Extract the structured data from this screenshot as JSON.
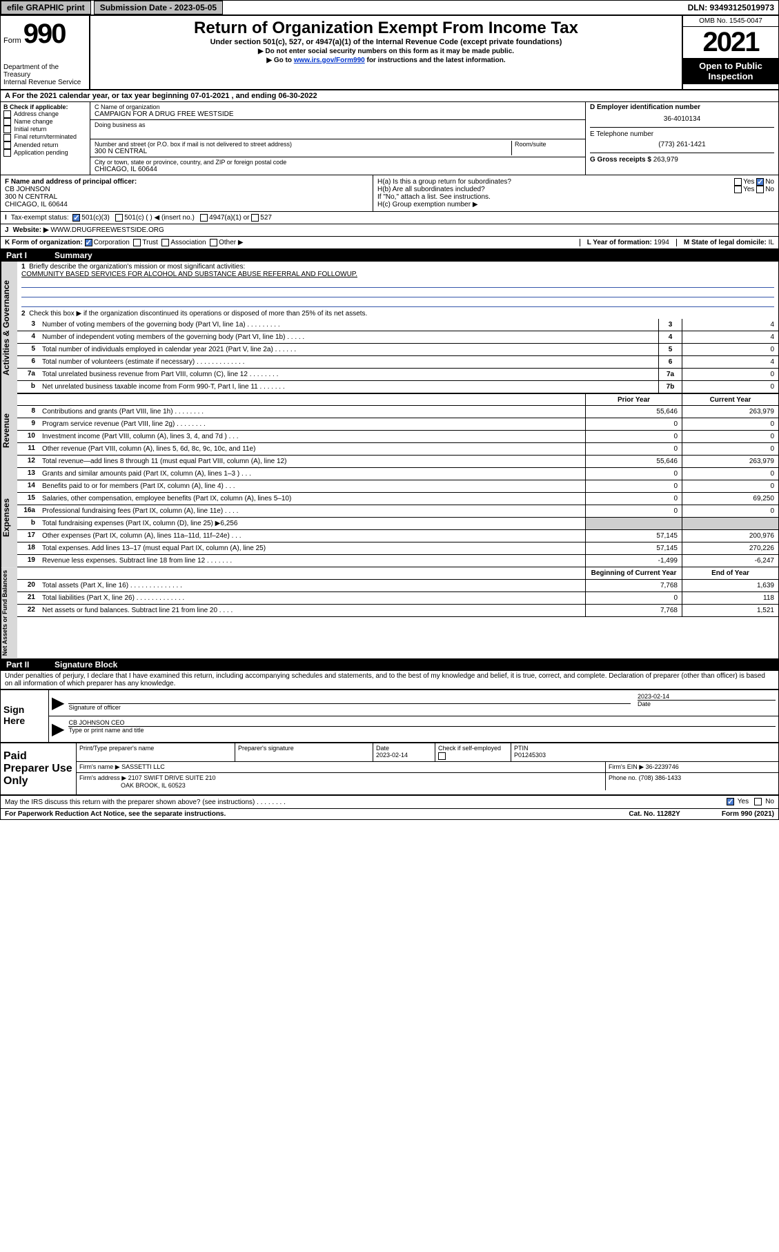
{
  "topbar": {
    "efile": "efile GRAPHIC print",
    "sub_label": "Submission Date - 2023-05-05",
    "dln": "DLN: 93493125019973"
  },
  "header": {
    "form_word": "Form",
    "form_num": "990",
    "dept": "Department of the Treasury",
    "irs": "Internal Revenue Service",
    "title": "Return of Organization Exempt From Income Tax",
    "sub1": "Under section 501(c), 527, or 4947(a)(1) of the Internal Revenue Code (except private foundations)",
    "sub2": "▶ Do not enter social security numbers on this form as it may be made public.",
    "sub3": "▶ Go to www.irs.gov/Form990 for instructions and the latest information.",
    "omb": "OMB No. 1545-0047",
    "year": "2021",
    "open": "Open to Public Inspection"
  },
  "period": "For the 2021 calendar year, or tax year beginning 07-01-2021   , and ending 06-30-2022",
  "boxB": {
    "hdr": "B Check if applicable:",
    "opts": [
      "Address change",
      "Name change",
      "Initial return",
      "Final return/terminated",
      "Amended return",
      "Application pending"
    ]
  },
  "boxC": {
    "lbl": "C Name of organization",
    "val": "CAMPAIGN FOR A DRUG FREE WESTSIDE",
    "dba_lbl": "Doing business as",
    "addr_lbl": "Number and street (or P.O. box if mail is not delivered to street address)",
    "room_lbl": "Room/suite",
    "addr": "300 N CENTRAL",
    "city_lbl": "City or town, state or province, country, and ZIP or foreign postal code",
    "city": "CHICAGO, IL  60644"
  },
  "boxD": {
    "lbl": "D Employer identification number",
    "val": "36-4010134"
  },
  "boxE": {
    "lbl": "E Telephone number",
    "val": "(773) 261-1421"
  },
  "boxG": {
    "lbl": "G Gross receipts $",
    "val": "263,979"
  },
  "boxF": {
    "lbl": "F Name and address of principal officer:",
    "name": "CB JOHNSON",
    "addr": "300 N CENTRAL",
    "city": "CHICAGO, IL  60644"
  },
  "boxH": {
    "a": "H(a)  Is this a group return for subordinates?",
    "b": "H(b)  Are all subordinates included?",
    "bnote": "If \"No,\" attach a list. See instructions.",
    "c": "H(c)  Group exemption number ▶",
    "yes": "Yes",
    "no": "No"
  },
  "taxstatus": {
    "lbl": "Tax-exempt status:",
    "o1": "501(c)(3)",
    "o2": "501(c) (   ) ◀ (insert no.)",
    "o3": "4947(a)(1) or",
    "o4": "527"
  },
  "website": {
    "lbl": "Website: ▶",
    "val": "WWW.DRUGFREEWESTSIDE.ORG"
  },
  "lineK": {
    "lbl": "K Form of organization:",
    "corp": "Corporation",
    "trust": "Trust",
    "assoc": "Association",
    "other": "Other ▶"
  },
  "lineL": {
    "lbl": "L Year of formation:",
    "val": "1994"
  },
  "lineM": {
    "lbl": "M State of legal domicile:",
    "val": "IL"
  },
  "part1": {
    "hdr": "Part I",
    "title": "Summary",
    "q1": "Briefly describe the organization's mission or most significant activities:",
    "q1val": "COMMUNITY BASED SERVICES FOR ALCOHOL AND SUBSTANCE ABUSE REFERRAL AND FOLLOWUP.",
    "q2": "Check this box ▶       if the organization discontinued its operations or disposed of more than 25% of its net assets.",
    "sideA": "Activities & Governance",
    "sideR": "Revenue",
    "sideE": "Expenses",
    "sideN": "Net Assets or Fund Balances",
    "prior": "Prior Year",
    "current": "Current Year",
    "boy": "Beginning of Current Year",
    "eoy": "End of Year"
  },
  "rows_gov": [
    {
      "n": "3",
      "t": "Number of voting members of the governing body (Part VI, line 1a)  .    .    .    .    .    .    .    .    .",
      "b": "3",
      "v": "4"
    },
    {
      "n": "4",
      "t": "Number of independent voting members of the governing body (Part VI, line 1b)  .    .    .    .    .",
      "b": "4",
      "v": "4"
    },
    {
      "n": "5",
      "t": "Total number of individuals employed in calendar year 2021 (Part V, line 2a)   .    .    .    .    .    .",
      "b": "5",
      "v": "0"
    },
    {
      "n": "6",
      "t": "Total number of volunteers (estimate if necessary)   .    .    .    .    .    .    .    .    .    .    .    .    .",
      "b": "6",
      "v": "4"
    },
    {
      "n": "7a",
      "t": "Total unrelated business revenue from Part VIII, column (C), line 12   .    .    .    .    .    .    .    .",
      "b": "7a",
      "v": "0"
    },
    {
      "n": "b",
      "t": "Net unrelated business taxable income from Form 990-T, Part I, line 11   .    .    .    .    .    .    .",
      "b": "7b",
      "v": "0"
    }
  ],
  "rows_rev": [
    {
      "n": "8",
      "t": "Contributions and grants (Part VIII, line 1h)   .    .    .    .    .    .    .    .",
      "p": "55,646",
      "c": "263,979"
    },
    {
      "n": "9",
      "t": "Program service revenue (Part VIII, line 2g)   .    .    .    .    .    .    .    .",
      "p": "0",
      "c": "0"
    },
    {
      "n": "10",
      "t": "Investment income (Part VIII, column (A), lines 3, 4, and 7d )   .    .    .",
      "p": "0",
      "c": "0"
    },
    {
      "n": "11",
      "t": "Other revenue (Part VIII, column (A), lines 5, 6d, 8c, 9c, 10c, and 11e)",
      "p": "0",
      "c": "0"
    },
    {
      "n": "12",
      "t": "Total revenue—add lines 8 through 11 (must equal Part VIII, column (A), line 12)",
      "p": "55,646",
      "c": "263,979"
    }
  ],
  "rows_exp": [
    {
      "n": "13",
      "t": "Grants and similar amounts paid (Part IX, column (A), lines 1–3 )  .    .    .",
      "p": "0",
      "c": "0"
    },
    {
      "n": "14",
      "t": "Benefits paid to or for members (Part IX, column (A), line 4)   .    .    .",
      "p": "0",
      "c": "0"
    },
    {
      "n": "15",
      "t": "Salaries, other compensation, employee benefits (Part IX, column (A), lines 5–10)",
      "p": "0",
      "c": "69,250"
    },
    {
      "n": "16a",
      "t": "Professional fundraising fees (Part IX, column (A), line 11e)   .    .    .    .",
      "p": "0",
      "c": "0"
    },
    {
      "n": "b",
      "t": "Total fundraising expenses (Part IX, column (D), line 25) ▶6,256",
      "gray": true
    },
    {
      "n": "17",
      "t": "Other expenses (Part IX, column (A), lines 11a–11d, 11f–24e)   .    .    .",
      "p": "57,145",
      "c": "200,976"
    },
    {
      "n": "18",
      "t": "Total expenses. Add lines 13–17 (must equal Part IX, column (A), line 25)",
      "p": "57,145",
      "c": "270,226"
    },
    {
      "n": "19",
      "t": "Revenue less expenses. Subtract line 18 from line 12   .    .    .    .    .    .    .",
      "p": "-1,499",
      "c": "-6,247"
    }
  ],
  "rows_net": [
    {
      "n": "20",
      "t": "Total assets (Part X, line 16)   .    .    .    .    .    .    .    .    .    .    .    .    .    .",
      "p": "7,768",
      "c": "1,639"
    },
    {
      "n": "21",
      "t": "Total liabilities (Part X, line 26)   .    .    .    .    .    .    .    .    .    .    .    .    .",
      "p": "0",
      "c": "118"
    },
    {
      "n": "22",
      "t": "Net assets or fund balances. Subtract line 21 from line 20   .    .    .    .",
      "p": "7,768",
      "c": "1,521"
    }
  ],
  "part2": {
    "hdr": "Part II",
    "title": "Signature Block"
  },
  "perjury": "Under penalties of perjury, I declare that I have examined this return, including accompanying schedules and statements, and to the best of my knowledge and belief, it is true, correct, and complete. Declaration of preparer (other than officer) is based on all information of which preparer has any knowledge.",
  "sign": {
    "here": "Sign Here",
    "sigoff": "Signature of officer",
    "date": "Date",
    "dateval": "2023-02-14",
    "name": "CB JOHNSON  CEO",
    "namelbl": "Type or print name and title"
  },
  "paid": {
    "lbl": "Paid Preparer Use Only",
    "h1": "Print/Type preparer's name",
    "h2": "Preparer's signature",
    "h3": "Date",
    "h3v": "2023-02-14",
    "h4": "Check        if self-employed",
    "h5": "PTIN",
    "h5v": "P01245303",
    "firm_lbl": "Firm's name   ▶",
    "firm": "SASSETTI LLC",
    "ein_lbl": "Firm's EIN ▶",
    "ein": "36-2239746",
    "addr_lbl": "Firm's address ▶",
    "addr": "2107 SWIFT DRIVE SUITE 210",
    "addr2": "OAK BROOK, IL  60523",
    "phone_lbl": "Phone no.",
    "phone": "(708) 386-1433"
  },
  "footer": {
    "q": "May the IRS discuss this return with the preparer shown above? (see instructions)   .    .    .    .    .    .    .    .",
    "yes": "Yes",
    "no": "No",
    "pra": "For Paperwork Reduction Act Notice, see the separate instructions.",
    "cat": "Cat. No. 11282Y",
    "form": "Form 990 (2021)"
  }
}
